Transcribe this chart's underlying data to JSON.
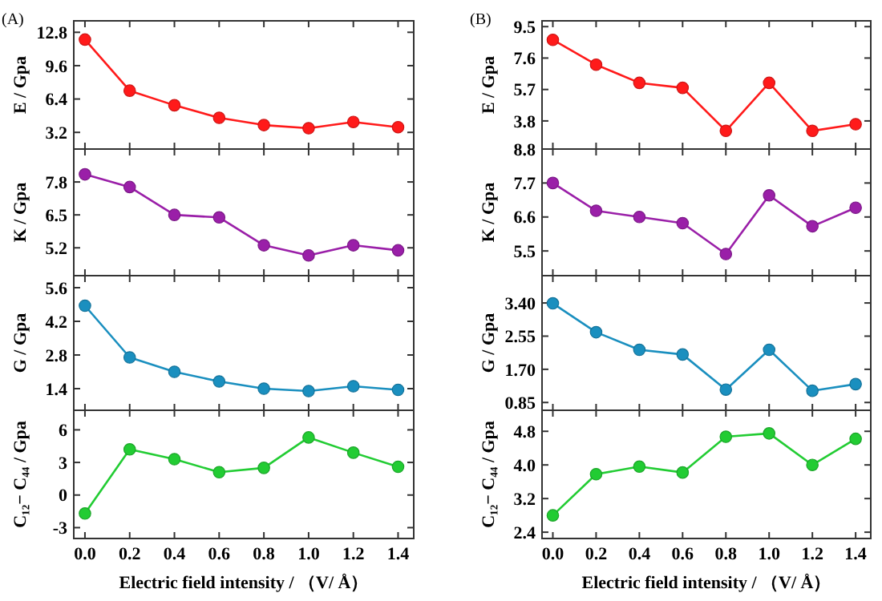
{
  "chart_data": [
    {
      "type": "line",
      "title": "(A)",
      "ylabel": "E / Gpa",
      "x": [
        0,
        0.2,
        0.4,
        0.6,
        0.8,
        1.0,
        1.2,
        1.4
      ],
      "xlim": [
        -0.05,
        1.47
      ],
      "xticks": [
        {
          "value": 0,
          "label": null
        },
        {
          "value": 0.2,
          "label": null
        },
        {
          "value": 0.4,
          "label": null
        },
        {
          "value": 0.6,
          "label": null
        },
        {
          "value": 0.8,
          "label": null
        },
        {
          "value": 1,
          "label": null
        },
        {
          "value": 1.2,
          "label": null
        },
        {
          "value": 1.4,
          "label": null
        }
      ],
      "ylim": [
        1.6,
        13.9
      ],
      "yticks": [
        3.2,
        6.4,
        9.6,
        12.8
      ],
      "tick_labels": "y",
      "marker": "circle",
      "grid": false,
      "series": [
        {
          "color": "#ff1a1a",
          "values": [
            12.1,
            7.2,
            5.8,
            4.6,
            3.9,
            3.6,
            4.2,
            3.7
          ]
        }
      ]
    },
    {
      "type": "line",
      "ylabel": "K / Gpa",
      "x": [
        0,
        0.2,
        0.4,
        0.6,
        0.8,
        1.0,
        1.2,
        1.4
      ],
      "xlim": [
        -0.05,
        1.47
      ],
      "xticks": [
        {
          "value": 0,
          "label": null
        },
        {
          "value": 0.2,
          "label": null
        },
        {
          "value": 0.4,
          "label": null
        },
        {
          "value": 0.6,
          "label": null
        },
        {
          "value": 0.8,
          "label": null
        },
        {
          "value": 1,
          "label": null
        },
        {
          "value": 1.2,
          "label": null
        },
        {
          "value": 1.4,
          "label": null
        }
      ],
      "ylim": [
        4.1,
        9.1
      ],
      "yticks": [
        5.2,
        6.5,
        7.8
      ],
      "tick_labels": "y",
      "marker": "circle",
      "grid": false,
      "series": [
        {
          "color": "#9a1fa8",
          "values": [
            8.1,
            7.6,
            6.5,
            6.4,
            5.3,
            4.9,
            5.3,
            5.1
          ]
        }
      ]
    },
    {
      "type": "line",
      "ylabel": "G / Gpa",
      "x": [
        0,
        0.2,
        0.4,
        0.6,
        0.8,
        1.0,
        1.2,
        1.4
      ],
      "xlim": [
        -0.05,
        1.47
      ],
      "xticks": [
        {
          "value": 0,
          "label": null
        },
        {
          "value": 0.2,
          "label": null
        },
        {
          "value": 0.4,
          "label": null
        },
        {
          "value": 0.6,
          "label": null
        },
        {
          "value": 0.8,
          "label": null
        },
        {
          "value": 1,
          "label": null
        },
        {
          "value": 1.2,
          "label": null
        },
        {
          "value": 1.4,
          "label": null
        }
      ],
      "ylim": [
        0.5,
        6.1
      ],
      "yticks": [
        1.4,
        2.8,
        4.2,
        5.6
      ],
      "tick_labels": "y",
      "marker": "circle",
      "grid": false,
      "series": [
        {
          "color": "#1a8fbf",
          "values": [
            4.85,
            2.7,
            2.1,
            1.7,
            1.4,
            1.3,
            1.5,
            1.35
          ]
        }
      ]
    },
    {
      "type": "line",
      "ylabel": "C₁₂− C₄₄ / Gpa",
      "xlabel": "Electric field intensity / （V/ Å）",
      "x": [
        0,
        0.2,
        0.4,
        0.6,
        0.8,
        1.0,
        1.2,
        1.4
      ],
      "xlim": [
        -0.05,
        1.47
      ],
      "xticks": [
        {
          "value": 0,
          "label": "0.0"
        },
        0.2,
        0.4,
        0.6,
        0.8,
        {
          "value": 1,
          "label": "1.0"
        },
        1.2,
        1.4
      ],
      "ylim": [
        -4,
        7.8
      ],
      "yticks": [
        -3,
        0,
        3,
        6
      ],
      "marker": "circle",
      "grid": false,
      "series": [
        {
          "color": "#22cc33",
          "values": [
            -1.7,
            4.2,
            3.3,
            2.1,
            2.5,
            5.3,
            3.9,
            2.6
          ]
        }
      ]
    },
    {
      "type": "line",
      "title": "(B)",
      "ylabel": "E / Gpa",
      "x": [
        0,
        0.2,
        0.4,
        0.6,
        0.8,
        1.0,
        1.2,
        1.4
      ],
      "xlim": [
        -0.05,
        1.47
      ],
      "xticks": [
        {
          "value": 0,
          "label": null
        },
        {
          "value": 0.2,
          "label": null
        },
        {
          "value": 0.4,
          "label": null
        },
        {
          "value": 0.6,
          "label": null
        },
        {
          "value": 0.8,
          "label": null
        },
        {
          "value": 1,
          "label": null
        },
        {
          "value": 1.2,
          "label": null
        },
        {
          "value": 1.4,
          "label": null
        }
      ],
      "ylim": [
        2.1,
        9.85
      ],
      "yticks": [
        3.8,
        5.7,
        7.6,
        9.5
      ],
      "tick_labels": "y",
      "marker": "circle",
      "grid": false,
      "series": [
        {
          "color": "#ff1a1a",
          "values": [
            8.7,
            7.2,
            6.1,
            5.8,
            3.2,
            6.1,
            3.2,
            3.6
          ]
        }
      ]
    },
    {
      "type": "line",
      "ylabel": "K / Gpa",
      "x": [
        0,
        0.2,
        0.4,
        0.6,
        0.8,
        1.0,
        1.2,
        1.4
      ],
      "xlim": [
        -0.05,
        1.47
      ],
      "xticks": [
        {
          "value": 0,
          "label": null
        },
        {
          "value": 0.2,
          "label": null
        },
        {
          "value": 0.4,
          "label": null
        },
        {
          "value": 0.6,
          "label": null
        },
        {
          "value": 0.8,
          "label": null
        },
        {
          "value": 1,
          "label": null
        },
        {
          "value": 1.2,
          "label": null
        },
        {
          "value": 1.4,
          "label": null
        }
      ],
      "ylim": [
        4.7,
        8.8
      ],
      "yticks": [
        5.5,
        6.6,
        7.7,
        8.8
      ],
      "tick_labels": "y",
      "marker": "circle",
      "grid": false,
      "series": [
        {
          "color": "#9a1fa8",
          "values": [
            7.7,
            6.8,
            6.6,
            6.4,
            5.4,
            7.3,
            6.3,
            6.9
          ]
        }
      ]
    },
    {
      "type": "line",
      "ylabel": "G / Gpa",
      "x": [
        0,
        0.2,
        0.4,
        0.6,
        0.8,
        1.0,
        1.2,
        1.4
      ],
      "xlim": [
        -0.05,
        1.47
      ],
      "xticks": [
        {
          "value": 0,
          "label": null
        },
        {
          "value": 0.2,
          "label": null
        },
        {
          "value": 0.4,
          "label": null
        },
        {
          "value": 0.6,
          "label": null
        },
        {
          "value": 0.8,
          "label": null
        },
        {
          "value": 1,
          "label": null
        },
        {
          "value": 1.2,
          "label": null
        },
        {
          "value": 1.4,
          "label": null
        }
      ],
      "ylim": [
        0.65,
        4.1
      ],
      "yticks": [
        0.85,
        {
          "value": 1.7,
          "label": "1.70"
        },
        2.55,
        {
          "value": 3.4,
          "label": "3.40"
        }
      ],
      "tick_labels": "y",
      "marker": "circle",
      "grid": false,
      "series": [
        {
          "color": "#1a8fbf",
          "values": [
            3.39,
            2.65,
            2.2,
            2.08,
            1.18,
            2.2,
            1.15,
            1.32
          ]
        }
      ]
    },
    {
      "type": "line",
      "ylabel": "C₁₂− C₄₄ / Gpa",
      "xlabel": "Electric field intensity / （V/ Å）",
      "x": [
        0,
        0.2,
        0.4,
        0.6,
        0.8,
        1.0,
        1.2,
        1.4
      ],
      "xlim": [
        -0.05,
        1.47
      ],
      "xticks": [
        {
          "value": 0,
          "label": "0.0"
        },
        0.2,
        0.4,
        0.6,
        0.8,
        {
          "value": 1,
          "label": "1.0"
        },
        1.2,
        1.4
      ],
      "ylim": [
        2.25,
        5.3
      ],
      "yticks": [
        2.4,
        3.2,
        {
          "value": 4,
          "label": "4.0"
        },
        4.8
      ],
      "marker": "circle",
      "grid": false,
      "series": [
        {
          "color": "#22cc33",
          "values": [
            2.8,
            3.78,
            3.96,
            3.82,
            4.67,
            4.75,
            4.0,
            4.62
          ]
        }
      ]
    }
  ]
}
